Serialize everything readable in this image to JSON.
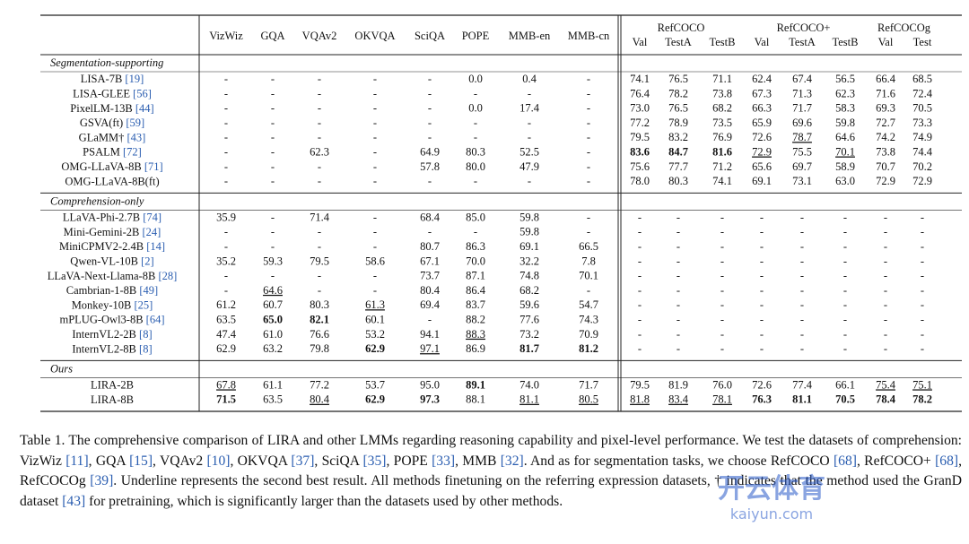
{
  "table": {
    "columns": [
      "VizWiz",
      "GQA",
      "VQAv2",
      "OKVQA",
      "SciQA",
      "POPE",
      "MMB-en",
      "MMB-cn"
    ],
    "groups": [
      {
        "name": "RefCOCO",
        "sub": [
          "Val",
          "TestA",
          "TestB"
        ]
      },
      {
        "name": "RefCOCO+",
        "sub": [
          "Val",
          "TestA",
          "TestB"
        ]
      },
      {
        "name": "RefCOCOg",
        "sub": [
          "Val",
          "Test"
        ]
      }
    ],
    "sections": [
      {
        "label": "Segmentation-supporting",
        "rows": [
          {
            "name": "LISA-7B",
            "ref": "[19]",
            "cells": [
              "-",
              "-",
              "-",
              "-",
              "-",
              "0.0",
              "0.4",
              "-",
              "74.1",
              "76.5",
              "71.1",
              "62.4",
              "67.4",
              "56.5",
              "66.4",
              "68.5"
            ],
            "bold": [],
            "underline": []
          },
          {
            "name": "LISA-GLEE",
            "ref": "[56]",
            "cells": [
              "-",
              "-",
              "-",
              "-",
              "-",
              "-",
              "-",
              "-",
              "76.4",
              "78.2",
              "73.8",
              "67.3",
              "71.3",
              "62.3",
              "71.6",
              "72.4"
            ],
            "bold": [],
            "underline": []
          },
          {
            "name": "PixelLM-13B",
            "ref": "[44]",
            "cells": [
              "-",
              "-",
              "-",
              "-",
              "-",
              "0.0",
              "17.4",
              "-",
              "73.0",
              "76.5",
              "68.2",
              "66.3",
              "71.7",
              "58.3",
              "69.3",
              "70.5"
            ],
            "bold": [],
            "underline": []
          },
          {
            "name": "GSVA(ft)",
            "ref": "[59]",
            "cells": [
              "-",
              "-",
              "-",
              "-",
              "-",
              "-",
              "-",
              "-",
              "77.2",
              "78.9",
              "73.5",
              "65.9",
              "69.6",
              "59.8",
              "72.7",
              "73.3"
            ],
            "bold": [],
            "underline": []
          },
          {
            "name": "GLaMM†",
            "ref": "[43]",
            "cells": [
              "-",
              "-",
              "-",
              "-",
              "-",
              "-",
              "-",
              "-",
              "79.5",
              "83.2",
              "76.9",
              "72.6",
              "78.7",
              "64.6",
              "74.2",
              "74.9"
            ],
            "bold": [],
            "underline": [
              12
            ]
          },
          {
            "name": "PSALM",
            "ref": "[72]",
            "cells": [
              "-",
              "-",
              "62.3",
              "-",
              "64.9",
              "80.3",
              "52.5",
              "-",
              "83.6",
              "84.7",
              "81.6",
              "72.9",
              "75.5",
              "70.1",
              "73.8",
              "74.4"
            ],
            "bold": [
              8,
              9,
              10
            ],
            "underline": [
              11,
              13
            ]
          },
          {
            "name": "OMG-LLaVA-8B",
            "ref": "[71]",
            "cells": [
              "-",
              "-",
              "-",
              "-",
              "57.8",
              "80.0",
              "47.9",
              "-",
              "75.6",
              "77.7",
              "71.2",
              "65.6",
              "69.7",
              "58.9",
              "70.7",
              "70.2"
            ],
            "bold": [],
            "underline": []
          },
          {
            "name": "OMG-LLaVA-8B(ft)",
            "ref": "",
            "cells": [
              "-",
              "-",
              "-",
              "-",
              "-",
              "-",
              "-",
              "-",
              "78.0",
              "80.3",
              "74.1",
              "69.1",
              "73.1",
              "63.0",
              "72.9",
              "72.9"
            ],
            "bold": [],
            "underline": []
          }
        ]
      },
      {
        "label": "Comprehension-only",
        "rows": [
          {
            "name": "LLaVA-Phi-2.7B",
            "ref": "[74]",
            "cells": [
              "35.9",
              "-",
              "71.4",
              "-",
              "68.4",
              "85.0",
              "59.8",
              "-",
              "-",
              "-",
              "-",
              "-",
              "-",
              "-",
              "-",
              "-"
            ],
            "bold": [],
            "underline": []
          },
          {
            "name": "Mini-Gemini-2B",
            "ref": "[24]",
            "cells": [
              "-",
              "-",
              "-",
              "-",
              "-",
              "-",
              "59.8",
              "-",
              "-",
              "-",
              "-",
              "-",
              "-",
              "-",
              "-",
              "-"
            ],
            "bold": [],
            "underline": []
          },
          {
            "name": "MiniCPMV2-2.4B",
            "ref": "[14]",
            "cells": [
              "-",
              "-",
              "-",
              "-",
              "80.7",
              "86.3",
              "69.1",
              "66.5",
              "-",
              "-",
              "-",
              "-",
              "-",
              "-",
              "-",
              "-"
            ],
            "bold": [],
            "underline": []
          },
          {
            "name": "Qwen-VL-10B",
            "ref": "[2]",
            "cells": [
              "35.2",
              "59.3",
              "79.5",
              "58.6",
              "67.1",
              "70.0",
              "32.2",
              "7.8",
              "-",
              "-",
              "-",
              "-",
              "-",
              "-",
              "-",
              "-"
            ],
            "bold": [],
            "underline": []
          },
          {
            "name": "LLaVA-Next-Llama-8B",
            "ref": "[28]",
            "cells": [
              "-",
              "-",
              "-",
              "-",
              "73.7",
              "87.1",
              "74.8",
              "70.1",
              "-",
              "-",
              "-",
              "-",
              "-",
              "-",
              "-",
              "-"
            ],
            "bold": [],
            "underline": []
          },
          {
            "name": "Cambrian-1-8B",
            "ref": "[49]",
            "cells": [
              "-",
              "64.6",
              "-",
              "-",
              "80.4",
              "86.4",
              "68.2",
              "-",
              "-",
              "-",
              "-",
              "-",
              "-",
              "-",
              "-",
              "-"
            ],
            "bold": [],
            "underline": [
              1
            ]
          },
          {
            "name": "Monkey-10B",
            "ref": "[25]",
            "cells": [
              "61.2",
              "60.7",
              "80.3",
              "61.3",
              "69.4",
              "83.7",
              "59.6",
              "54.7",
              "-",
              "-",
              "-",
              "-",
              "-",
              "-",
              "-",
              "-"
            ],
            "bold": [],
            "underline": [
              3
            ]
          },
          {
            "name": "mPLUG-Owl3-8B",
            "ref": "[64]",
            "cells": [
              "63.5",
              "65.0",
              "82.1",
              "60.1",
              "-",
              "88.2",
              "77.6",
              "74.3",
              "-",
              "-",
              "-",
              "-",
              "-",
              "-",
              "-",
              "-"
            ],
            "bold": [
              1,
              2
            ],
            "underline": []
          },
          {
            "name": "InternVL2-2B",
            "ref": "[8]",
            "cells": [
              "47.4",
              "61.0",
              "76.6",
              "53.2",
              "94.1",
              "88.3",
              "73.2",
              "70.9",
              "-",
              "-",
              "-",
              "-",
              "-",
              "-",
              "-",
              "-"
            ],
            "bold": [],
            "underline": [
              5
            ]
          },
          {
            "name": "InternVL2-8B",
            "ref": "[8]",
            "cells": [
              "62.9",
              "63.2",
              "79.8",
              "62.9",
              "97.1",
              "86.9",
              "81.7",
              "81.2",
              "-",
              "-",
              "-",
              "-",
              "-",
              "-",
              "-",
              "-"
            ],
            "bold": [
              3,
              6,
              7
            ],
            "underline": [
              4
            ]
          }
        ]
      },
      {
        "label": "Ours",
        "rows": [
          {
            "name": "LIRA-2B",
            "ref": "",
            "cells": [
              "67.8",
              "61.1",
              "77.2",
              "53.7",
              "95.0",
              "89.1",
              "74.0",
              "71.7",
              "79.5",
              "81.9",
              "76.0",
              "72.6",
              "77.4",
              "66.1",
              "75.4",
              "75.1"
            ],
            "bold": [
              5
            ],
            "underline": [
              0,
              14,
              15
            ]
          },
          {
            "name": "LIRA-8B",
            "ref": "",
            "cells": [
              "71.5",
              "63.5",
              "80.4",
              "62.9",
              "97.3",
              "88.1",
              "81.1",
              "80.5",
              "81.8",
              "83.4",
              "78.1",
              "76.3",
              "81.1",
              "70.5",
              "78.4",
              "78.2"
            ],
            "bold": [
              0,
              3,
              4,
              11,
              12,
              13,
              14,
              15
            ],
            "underline": [
              2,
              6,
              7,
              8,
              9,
              10
            ]
          }
        ]
      }
    ]
  },
  "caption": [
    "Table 1. The comprehensive comparison of LIRA and other LMMs regarding reasoning capability and pixel-level performance. We test the datasets of comprehension: VizWiz ",
    "[11]",
    ", GQA ",
    "[15]",
    ", VQAv2 ",
    "[10]",
    ", OKVQA ",
    "[37]",
    ", SciQA ",
    "[35]",
    ", POPE ",
    "[33]",
    ", MMB ",
    "[32]",
    ". And as for segmentation tasks, we choose RefCOCO ",
    "[68]",
    ", RefCOCO+ ",
    "[68]",
    ", RefCOCOg ",
    "[39]",
    ". Underline represents the second best result. All methods finetuning on the referring expression datasets, † indicates that the method used the GranD dataset ",
    "[43]",
    " for pretraining, which is significantly larger than the datasets used by other methods."
  ],
  "watermark": {
    "title": "开云体育",
    "url": "kaiyun.com"
  }
}
